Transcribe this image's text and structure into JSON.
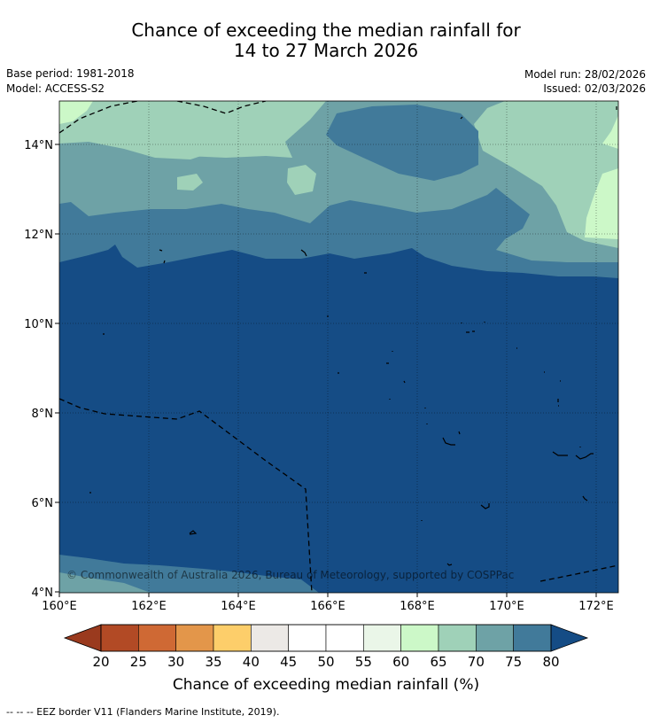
{
  "title": {
    "line1": "Chance of exceeding the median rainfall for",
    "line2": "14 to 27 March 2026"
  },
  "info": {
    "base_period": "Base period: 1981-2018",
    "model": "Model: ACCESS-S2",
    "model_run": "Model run: 28/02/2026",
    "issued": "Issued: 02/03/2026"
  },
  "map": {
    "copyright": "© Commonwealth of Australia 2026, Bureau of Meteorology, supported by COSPPac",
    "lon_labels": [
      "160°E",
      "162°E",
      "164°E",
      "166°E",
      "168°E",
      "170°E",
      "172°E"
    ],
    "lat_labels": [
      "14°N",
      "12°N",
      "10°N",
      "8°N",
      "6°N",
      "4°N"
    ]
  },
  "colorbar": {
    "ticks": [
      "20",
      "25",
      "30",
      "35",
      "40",
      "45",
      "50",
      "55",
      "60",
      "65",
      "70",
      "75",
      "80"
    ],
    "colors": [
      "#b24a25",
      "#cf6934",
      "#e3964a",
      "#fdce6a",
      "#ece9e6",
      "#ffffff",
      "#ffffff",
      "#eaf6e8",
      "#ccf8c8",
      "#9fd1b8",
      "#6ea2a6",
      "#417a9a"
    ],
    "under_color": "#9a3a1e",
    "over_color": "#154c85",
    "label": "Chance of exceeding median rainfall (%)"
  },
  "footnote": "--  --  -- EEZ border V11 (Flanders Marine Institute, 2019)."
}
